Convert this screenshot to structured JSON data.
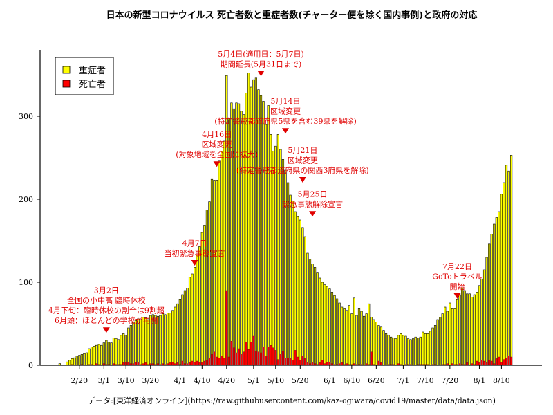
{
  "chart_data": {
    "type": "bar",
    "title": "日本の新型コロナウイルス 死亡者数と重症者数(チャーター便を除く国内事例)と政府の対応",
    "source": "データ:[東洋経済オンライン](https://raw.githubusercontent.com/kaz-ogiwara/covid19/master/data/data.json)",
    "x_start": "2020-02-12",
    "ylim": [
      0,
      380
    ],
    "yticks": [
      0,
      100,
      200,
      300
    ],
    "xticks": [
      {
        "label": "2/20",
        "day": 8
      },
      {
        "label": "3/1",
        "day": 18
      },
      {
        "label": "3/10",
        "day": 27
      },
      {
        "label": "3/20",
        "day": 37
      },
      {
        "label": "4/1",
        "day": 49
      },
      {
        "label": "4/10",
        "day": 58
      },
      {
        "label": "4/20",
        "day": 68
      },
      {
        "label": "5/1",
        "day": 79
      },
      {
        "label": "5/10",
        "day": 88
      },
      {
        "label": "5/20",
        "day": 98
      },
      {
        "label": "6/1",
        "day": 110
      },
      {
        "label": "6/10",
        "day": 119
      },
      {
        "label": "6/20",
        "day": 129
      },
      {
        "label": "7/1",
        "day": 140
      },
      {
        "label": "7/10",
        "day": 149
      },
      {
        "label": "7/20",
        "day": 159
      },
      {
        "label": "8/1",
        "day": 171
      },
      {
        "label": "8/10",
        "day": 180
      }
    ],
    "series": [
      {
        "name": "重症者",
        "color": "#ffff00",
        "values": [
          2,
          0,
          0,
          4,
          6,
          8,
          9,
          11,
          12,
          13,
          14,
          15,
          20,
          22,
          23,
          24,
          25,
          24,
          27,
          30,
          28,
          27,
          33,
          32,
          31,
          36,
          38,
          36,
          45,
          48,
          52,
          54,
          56,
          55,
          58,
          57,
          55,
          60,
          61,
          60,
          59,
          60,
          62,
          61,
          63,
          63,
          66,
          70,
          74,
          79,
          85,
          90,
          93,
          106,
          110,
          118,
          133,
          143,
          160,
          168,
          187,
          197,
          224,
          223,
          223,
          246,
          258,
          270,
          349,
          298,
          316,
          309,
          316,
          315,
          306,
          302,
          328,
          352,
          335,
          344,
          346,
          332,
          325,
          318,
          290,
          313,
          278,
          258,
          264,
          278,
          260,
          248,
          235,
          220,
          205,
          198,
          185,
          179,
          175,
          166,
          155,
          135,
          128,
          122,
          118,
          112,
          105,
          100,
          97,
          95,
          92,
          88,
          84,
          80,
          75,
          70,
          68,
          66,
          72,
          62,
          81,
          60,
          68,
          65,
          59,
          62,
          74,
          58,
          55,
          52,
          48,
          46,
          42,
          38,
          36,
          34,
          33,
          32,
          36,
          38,
          36,
          35,
          32,
          31,
          32,
          34,
          33,
          34,
          40,
          38,
          38,
          41,
          45,
          48,
          55,
          58,
          62,
          70,
          65,
          75,
          68,
          68,
          79,
          85,
          93,
          90,
          86,
          86,
          82,
          85,
          88,
          96,
          104,
          115,
          130,
          146,
          158,
          170,
          178,
          185,
          206,
          220,
          241,
          234,
          253
        ]
      },
      {
        "name": "死亡者",
        "color": "#ff0000",
        "values": [
          0,
          0,
          0,
          0,
          0,
          1,
          0,
          0,
          0,
          1,
          0,
          0,
          1,
          1,
          0,
          2,
          1,
          0,
          2,
          1,
          1,
          0,
          2,
          1,
          1,
          1,
          3,
          4,
          4,
          2,
          2,
          4,
          3,
          1,
          2,
          3,
          1,
          2,
          2,
          1,
          2,
          1,
          2,
          1,
          2,
          3,
          4,
          2,
          3,
          1,
          5,
          2,
          2,
          3,
          5,
          4,
          5,
          4,
          3,
          5,
          6,
          8,
          13,
          16,
          10,
          9,
          11,
          9,
          90,
          10,
          29,
          21,
          15,
          20,
          13,
          16,
          28,
          19,
          28,
          35,
          17,
          16,
          15,
          22,
          11,
          22,
          24,
          21,
          18,
          7,
          13,
          17,
          9,
          9,
          8,
          6,
          18,
          10,
          6,
          11,
          8,
          3,
          2,
          3,
          2,
          1,
          3,
          6,
          2,
          4,
          4,
          2,
          1,
          1,
          2,
          3,
          1,
          2,
          1,
          1,
          2,
          1,
          1,
          1,
          0,
          2,
          1,
          16,
          1,
          0,
          5,
          3,
          0,
          0,
          1,
          1,
          1,
          0,
          2,
          1,
          0,
          1,
          1,
          1,
          0,
          0,
          1,
          1,
          1,
          1,
          1,
          0,
          1,
          1,
          0,
          0,
          1,
          1,
          2,
          0,
          2,
          1,
          1,
          2,
          1,
          1,
          3,
          0,
          2,
          1,
          5,
          3,
          6,
          5,
          3,
          6,
          5,
          2,
          8,
          10,
          4,
          7,
          9,
          11,
          10
        ]
      }
    ],
    "legend": {
      "position": "top-left",
      "items": [
        "重症者",
        "死亡者"
      ]
    },
    "annotations": [
      {
        "day": 19,
        "value": 39,
        "lines": [
          "3月2日",
          "全国の小中高 臨時休校",
          "4月下旬：臨時休校の割合は9割超",
          "6月頭：ほとんどの学校が再開"
        ]
      },
      {
        "day": 55,
        "value": 120,
        "lines": [
          "4月7日",
          "当初緊急事態宣言"
        ]
      },
      {
        "day": 64,
        "value": 239,
        "lines": [
          "4月16日",
          "区域変更",
          "(対象地域を全国に拡大)"
        ]
      },
      {
        "day": 82,
        "value": 348,
        "lines": [
          "5月4日(適用日：5月7日)",
          "期間延長(5月31日まで)"
        ]
      },
      {
        "day": 92,
        "value": 279,
        "lines": [
          "5月14日",
          "区域変更",
          "(特定警戒都道府県5県を含む39県を解除)"
        ]
      },
      {
        "day": 99,
        "value": 220,
        "lines": [
          "5月21日",
          "区域変更",
          "(特定警戒都道府県の関西3府県を解除)"
        ]
      },
      {
        "day": 103,
        "value": 179,
        "lines": [
          "5月25日",
          "緊急事態解除宣言"
        ]
      },
      {
        "day": 162,
        "value": 80,
        "lines": [
          "7月22日",
          "GoToトラベル",
          "開始"
        ]
      }
    ]
  }
}
